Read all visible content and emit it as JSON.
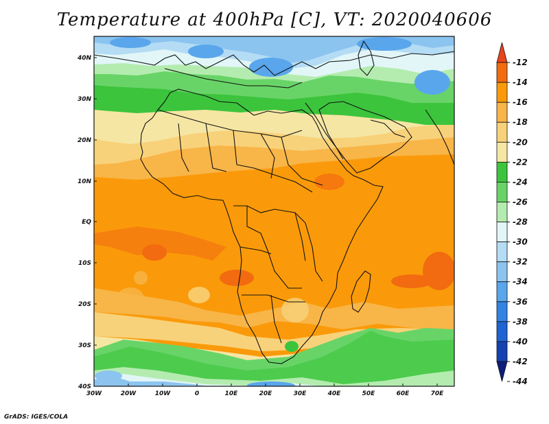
{
  "title": "Temperature at 400hPa [C], VT: 2020040606",
  "footer": "GrADS: IGES/COLA",
  "map": {
    "lat_labels": [
      "40N",
      "30N",
      "20N",
      "10N",
      "EQ",
      "10S",
      "20S",
      "30S",
      "40S"
    ],
    "lon_labels": [
      "30W",
      "20W",
      "10W",
      "0",
      "10E",
      "20E",
      "30E",
      "40E",
      "50E",
      "60E",
      "70E"
    ]
  },
  "colorbar": {
    "labels": [
      "-12",
      "-14",
      "-16",
      "-18",
      "-20",
      "-22",
      "-24",
      "-26",
      "-28",
      "-30",
      "-32",
      "-34",
      "-36",
      "-38",
      "-40",
      "-42",
      "-44"
    ],
    "colors": {
      "-12_over": "#e8451c",
      "-14": "#f26b10",
      "-16": "#fa9a0a",
      "-18": "#f8b548",
      "-20": "#f8d27a",
      "-22": "#f6e6a4",
      "-24": "#3cc43c",
      "-26": "#68d468",
      "-28": "#b4ecb0",
      "-30": "#e2f6f8",
      "-32": "#b4dcf4",
      "-34": "#8cc4f0",
      "-36": "#5aa6ec",
      "-38": "#3284e4",
      "-40": "#1e64d2",
      "-42": "#1442b0",
      "-44_under": "#0c1e78"
    }
  }
}
